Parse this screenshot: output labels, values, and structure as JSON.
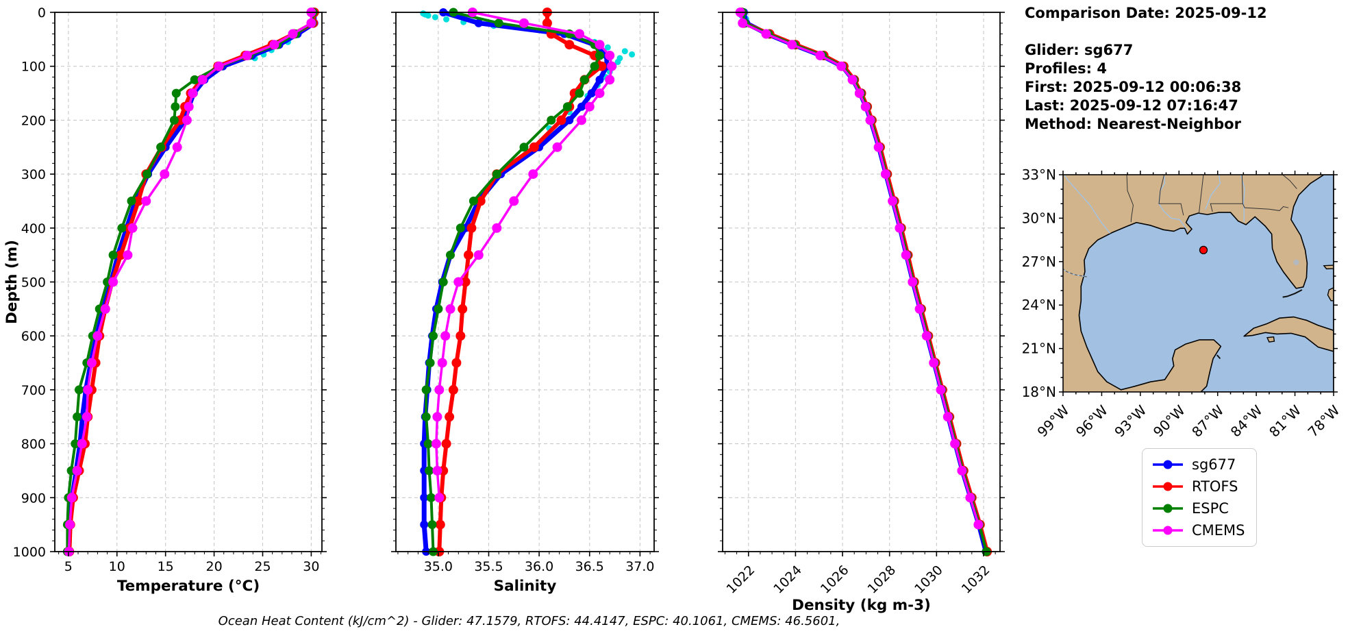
{
  "figure": {
    "info_panel": {
      "lines": [
        "Comparison Date: 2025-09-12",
        "",
        "Glider: sg677",
        "Profiles: 4",
        "First: 2025-09-12 00:06:38",
        "Last: 2025-09-12 07:16:47",
        "Method: Nearest-Neighbor"
      ]
    },
    "legend": {
      "items": [
        {
          "label": "sg677",
          "color": "#0000ff"
        },
        {
          "label": "RTOFS",
          "color": "#ff0000"
        },
        {
          "label": "ESPC",
          "color": "#008000"
        },
        {
          "label": "CMEMS",
          "color": "#ff00ff"
        }
      ]
    },
    "footer": "Ocean Heat Content (kJ/cm^2) - Glider: 47.1579,  RTOFS: 44.4147,  ESPC: 40.1061,  CMEMS: 46.5601,"
  },
  "map": {
    "lat_ticks": [
      "33°N",
      "30°N",
      "27°N",
      "24°N",
      "21°N",
      "18°N"
    ],
    "lon_ticks": [
      "99°W",
      "96°W",
      "93°W",
      "90°W",
      "87°W",
      "84°W",
      "81°W",
      "78°W"
    ],
    "extent": {
      "lon_min": -99,
      "lon_max": -78,
      "lat_min": 18,
      "lat_max": 33
    },
    "marker": {
      "lon": -88.1,
      "lat": 27.8,
      "color": "#ff0000"
    },
    "land_color": "#d2b48c",
    "ocean_color": "#a2c1e2",
    "river_color": "#9fc4ea",
    "lake_color": "#b3b9bf"
  },
  "chart_data": [
    {
      "type": "line",
      "xlabel": "Temperature (°C)",
      "ylabel": "Depth (m)",
      "xlim": [
        3.6,
        31.1
      ],
      "ylim": [
        0,
        1000
      ],
      "y_inverted": true,
      "grid": true,
      "xticks": [
        5,
        10,
        15,
        20,
        25,
        30
      ],
      "xtick_labels": [
        "5",
        "10",
        "15",
        "20",
        "25",
        "30"
      ],
      "yticks": [
        0,
        100,
        200,
        300,
        400,
        500,
        600,
        700,
        800,
        900,
        1000
      ],
      "ytick_labels": [
        "0",
        "100",
        "200",
        "300",
        "400",
        "500",
        "600",
        "700",
        "800",
        "900",
        "1000"
      ],
      "depths": [
        0,
        20,
        40,
        60,
        80,
        100,
        125,
        150,
        175,
        200,
        250,
        300,
        350,
        400,
        450,
        500,
        550,
        600,
        650,
        700,
        750,
        800,
        850,
        900,
        950,
        1000
      ],
      "series": [
        {
          "name": "sg677-raw",
          "color": "#00dddd",
          "scatter": true,
          "depths": [
            3,
            55,
            62,
            70,
            78,
            85
          ],
          "values": [
            30.4,
            27.6,
            26.6,
            25.9,
            25.1,
            24.2
          ]
        },
        {
          "name": "sg677",
          "color": "#0000ff",
          "values": [
            30.3,
            30.3,
            28.6,
            26.7,
            23.9,
            20.9,
            19.0,
            17.9,
            17.4,
            17.0,
            15.0,
            13.2,
            11.9,
            11.0,
            10.1,
            9.4,
            8.6,
            7.9,
            7.3,
            6.8,
            6.45,
            6.2,
            5.8,
            5.4,
            5.15,
            5.05
          ]
        },
        {
          "name": "RTOFS",
          "color": "#ff0000",
          "values": [
            30.3,
            30.2,
            28.2,
            26.0,
            23.2,
            20.4,
            18.7,
            17.6,
            17.0,
            16.5,
            14.6,
            13.0,
            12.2,
            11.3,
            10.4,
            9.5,
            8.8,
            8.2,
            7.8,
            7.4,
            7.0,
            6.7,
            6.1,
            5.5,
            5.2,
            5.1
          ]
        },
        {
          "name": "ESPC",
          "color": "#008000",
          "values": [
            30.2,
            30.1,
            28.4,
            26.5,
            23.6,
            20.6,
            18.0,
            16.1,
            16.0,
            15.9,
            14.5,
            13.1,
            11.5,
            10.5,
            9.6,
            9.0,
            8.2,
            7.5,
            6.9,
            6.1,
            5.9,
            5.7,
            5.3,
            5.0,
            4.9,
            4.9
          ]
        },
        {
          "name": "CMEMS",
          "color": "#ff00ff",
          "values": [
            30.0,
            30.0,
            28.1,
            26.2,
            23.4,
            20.5,
            18.8,
            17.8,
            17.4,
            17.2,
            16.2,
            14.9,
            13.0,
            11.6,
            11.1,
            9.6,
            8.8,
            8.0,
            7.4,
            7.0,
            6.9,
            6.4,
            5.9,
            5.35,
            5.15,
            5.05
          ]
        }
      ]
    },
    {
      "type": "line",
      "xlabel": "Salinity",
      "xlim": [
        34.58,
        37.14
      ],
      "ylim": [
        0,
        1000
      ],
      "y_inverted": true,
      "grid": true,
      "xticks": [
        35.0,
        35.5,
        36.0,
        36.5,
        37.0
      ],
      "xtick_labels": [
        "35.0",
        "35.5",
        "36.0",
        "36.5",
        "37.0"
      ],
      "yticks": [
        0,
        100,
        200,
        300,
        400,
        500,
        600,
        700,
        800,
        900,
        1000
      ],
      "ytick_labels": [
        "0",
        "100",
        "200",
        "300",
        "400",
        "500",
        "600",
        "700",
        "800",
        "900",
        "1000"
      ],
      "depths": [
        0,
        20,
        40,
        60,
        80,
        100,
        125,
        150,
        175,
        200,
        250,
        300,
        350,
        400,
        450,
        500,
        550,
        600,
        650,
        700,
        750,
        800,
        850,
        900,
        950,
        1000
      ],
      "series": [
        {
          "name": "sg677-raw",
          "color": "#00dddd",
          "scatter": true,
          "depths": [
            2,
            4,
            6,
            9,
            13,
            18,
            25,
            55,
            65,
            72,
            78,
            85,
            92,
            100,
            110,
            120,
            135,
            155,
            185,
            215
          ],
          "values": [
            34.85,
            34.87,
            34.9,
            34.97,
            35.08,
            35.25,
            35.55,
            36.55,
            36.68,
            36.85,
            36.92,
            36.8,
            36.78,
            36.74,
            36.7,
            36.66,
            36.58,
            36.48,
            36.3,
            36.1
          ]
        },
        {
          "name": "sg677",
          "color": "#0000ff",
          "values": [
            35.05,
            35.4,
            36.25,
            36.55,
            36.67,
            36.67,
            36.6,
            36.52,
            36.42,
            36.3,
            36.0,
            35.62,
            35.4,
            35.27,
            35.12,
            35.04,
            34.98,
            34.94,
            34.91,
            34.89,
            34.87,
            34.86,
            34.86,
            34.86,
            34.86,
            34.88
          ]
        },
        {
          "name": "RTOFS",
          "color": "#ff0000",
          "values": [
            36.08,
            36.08,
            36.12,
            36.3,
            36.55,
            36.62,
            36.45,
            36.35,
            36.3,
            36.22,
            35.95,
            35.58,
            35.42,
            35.33,
            35.3,
            35.27,
            35.24,
            35.22,
            35.18,
            35.15,
            35.11,
            35.08,
            35.05,
            35.03,
            35.02,
            35.01
          ]
        },
        {
          "name": "ESPC",
          "color": "#008000",
          "values": [
            35.15,
            35.6,
            36.3,
            36.55,
            36.6,
            36.55,
            36.45,
            36.4,
            36.28,
            36.12,
            35.85,
            35.58,
            35.35,
            35.22,
            35.12,
            35.05,
            35.0,
            34.95,
            34.92,
            34.88,
            34.88,
            34.9,
            34.91,
            34.93,
            34.94,
            34.95
          ]
        },
        {
          "name": "CMEMS",
          "color": "#ff00ff",
          "values": [
            35.34,
            35.85,
            36.4,
            36.6,
            36.7,
            36.72,
            36.7,
            36.6,
            36.5,
            36.42,
            36.18,
            35.94,
            35.75,
            35.58,
            35.4,
            35.2,
            35.12,
            35.07,
            35.04,
            35.01,
            34.99,
            34.98,
            34.99,
            35.01,
            null,
            null
          ]
        }
      ]
    },
    {
      "type": "line",
      "xlabel": "Density (kg m-3)",
      "xlim": [
        1020.9,
        1032.7
      ],
      "ylim": [
        0,
        1000
      ],
      "y_inverted": true,
      "grid": true,
      "xticks": [
        1022,
        1024,
        1026,
        1028,
        1030,
        1032
      ],
      "xtick_labels": [
        "1022",
        "1024",
        "1026",
        "1028",
        "1030",
        "1032"
      ],
      "yticks": [
        0,
        100,
        200,
        300,
        400,
        500,
        600,
        700,
        800,
        900,
        1000
      ],
      "ytick_labels": [
        "0",
        "100",
        "200",
        "300",
        "400",
        "500",
        "600",
        "700",
        "800",
        "900",
        "1000"
      ],
      "depths": [
        0,
        20,
        40,
        60,
        80,
        100,
        125,
        150,
        175,
        200,
        250,
        300,
        350,
        400,
        450,
        500,
        550,
        600,
        650,
        700,
        750,
        800,
        850,
        900,
        950,
        1000
      ],
      "series": [
        {
          "name": "sg677-raw",
          "color": "#00dddd",
          "scatter": true,
          "depths": [
            2,
            6,
            12
          ],
          "values": [
            1021.6,
            1021.7,
            1021.9
          ]
        },
        {
          "name": "sg677",
          "color": "#0000ff",
          "values": [
            1021.8,
            1021.9,
            1022.8,
            1023.9,
            1025.1,
            1026.0,
            1026.45,
            1026.75,
            1027.0,
            1027.2,
            1027.55,
            1027.85,
            1028.15,
            1028.45,
            1028.72,
            1029.0,
            1029.3,
            1029.6,
            1029.9,
            1030.2,
            1030.5,
            1030.8,
            1031.1,
            1031.45,
            1031.8,
            1032.1
          ]
        },
        {
          "name": "RTOFS",
          "color": "#ff0000",
          "values": [
            1021.7,
            1021.8,
            1022.9,
            1024.0,
            1025.2,
            1026.05,
            1026.5,
            1026.8,
            1027.05,
            1027.25,
            1027.6,
            1027.9,
            1028.2,
            1028.5,
            1028.78,
            1029.05,
            1029.35,
            1029.65,
            1029.95,
            1030.25,
            1030.55,
            1030.85,
            1031.15,
            1031.5,
            1031.85,
            1032.15
          ]
        },
        {
          "name": "ESPC",
          "color": "#008000",
          "values": [
            1021.75,
            1021.85,
            1022.85,
            1023.95,
            1025.15,
            1026.0,
            1026.48,
            1026.78,
            1027.02,
            1027.22,
            1027.57,
            1027.87,
            1028.17,
            1028.47,
            1028.75,
            1029.02,
            1029.32,
            1029.62,
            1029.92,
            1030.22,
            1030.52,
            1030.82,
            1031.12,
            1031.47,
            1031.82,
            1032.12
          ]
        },
        {
          "name": "CMEMS",
          "color": "#ff00ff",
          "values": [
            1021.65,
            1021.75,
            1022.75,
            1023.85,
            1025.05,
            1025.95,
            1026.42,
            1026.72,
            1026.98,
            1027.18,
            1027.53,
            1027.83,
            1028.13,
            1028.43,
            1028.7,
            1028.98,
            1029.28,
            1029.58,
            1029.88,
            1030.18,
            1030.48,
            1030.78,
            1031.08,
            1031.43,
            1031.78,
            null
          ]
        }
      ]
    }
  ]
}
